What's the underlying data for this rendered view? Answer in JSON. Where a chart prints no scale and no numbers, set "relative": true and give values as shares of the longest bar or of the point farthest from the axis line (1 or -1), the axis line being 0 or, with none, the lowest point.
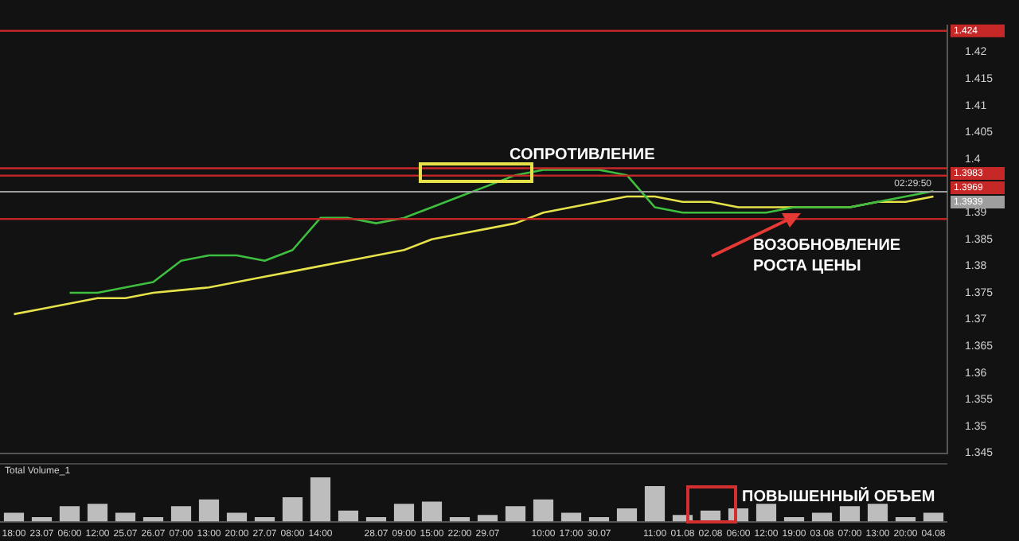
{
  "chart_data": [
    {
      "type": "line",
      "categories": [
        null,
        null,
        null,
        null,
        null,
        null,
        null,
        null,
        null,
        null,
        null,
        null,
        null,
        null,
        null,
        null,
        null,
        null,
        null,
        null,
        null,
        null,
        null,
        null,
        null,
        null,
        null,
        null,
        null,
        null,
        null,
        null,
        null,
        null
      ],
      "series": [
        {
          "color": "#3fbf3f",
          "values": [
            null,
            null,
            1.375,
            1.375,
            1.376,
            1.377,
            1.381,
            1.382,
            1.382,
            1.381,
            1.383,
            1.389,
            1.389,
            1.388,
            1.389,
            1.391,
            1.393,
            1.395,
            1.397,
            1.398,
            1.398,
            1.398,
            1.397,
            1.391,
            1.39,
            1.39,
            1.39,
            1.39,
            1.391,
            1.391,
            1.391,
            1.392,
            1.393,
            1.394
          ]
        },
        {
          "color": "#e6e24a",
          "values": [
            1.371,
            1.372,
            1.373,
            1.374,
            1.374,
            1.375,
            1.3755,
            1.376,
            1.377,
            1.378,
            1.379,
            1.38,
            1.381,
            1.382,
            1.383,
            1.385,
            1.386,
            1.387,
            1.388,
            1.39,
            1.391,
            1.392,
            1.393,
            1.393,
            1.392,
            1.392,
            1.391,
            1.391,
            1.391,
            1.391,
            1.391,
            1.392,
            1.392,
            1.393
          ]
        }
      ],
      "ylim": [
        1.345,
        1.425
      ],
      "yticks": [
        1.345,
        1.35,
        1.355,
        1.36,
        1.365,
        1.37,
        1.375,
        1.38,
        1.385,
        1.39,
        1.4,
        1.405,
        1.41,
        1.415,
        1.42
      ],
      "tick_labels": "y",
      "grid": false,
      "legend": false,
      "ref_lines": [
        {
          "axis": "y",
          "value": 1.424,
          "label": "1.424",
          "color": "#c62828"
        },
        {
          "axis": "y",
          "value": 1.3983,
          "label": "1.3983",
          "color": "#c62828"
        },
        {
          "axis": "y",
          "value": 1.3969,
          "label": "1.3969",
          "color": "#c62828"
        },
        {
          "axis": "y",
          "value": 1.3888,
          "color": "#c62828"
        },
        {
          "axis": "y",
          "value": 1.3939,
          "label": "1.3939",
          "color": "#9e9e9e"
        }
      ],
      "annotations": [
        "СОПРОТИВЛЕНИЕ",
        "ВОЗОБНОВЛЕНИЕ РОСТА ЦЕНЫ",
        {
          "text": "02:29:50",
          "y": 1.3939
        }
      ]
    },
    {
      "type": "bar",
      "categories": [
        "18:00",
        "23.07",
        "06:00",
        "12:00",
        "25.07",
        "26.07",
        "07:00",
        "13:00",
        "20:00",
        "27.07",
        "08:00",
        "14:00",
        null,
        "28.07",
        "09:00",
        "15:00",
        "22:00",
        "29.07",
        null,
        "10:00",
        "17:00",
        "30.07",
        null,
        "11:00",
        "01.08",
        "02.08",
        "06:00",
        "12:00",
        "19:00",
        "03.08",
        "07:00",
        "13:00",
        "20:00",
        "04.08"
      ],
      "values": [
        0.2,
        0.1,
        0.35,
        0.4,
        0.2,
        0.1,
        0.35,
        0.5,
        0.2,
        0.1,
        0.55,
        1.0,
        0.25,
        0.1,
        0.4,
        0.45,
        0.1,
        0.15,
        0.35,
        0.5,
        0.2,
        0.1,
        0.3,
        0.8,
        0.15,
        0.25,
        0.3,
        0.4,
        0.1,
        0.2,
        0.35,
        0.4,
        0.1,
        0.2
      ],
      "color": "#bdbdbd",
      "relative": true,
      "tick_labels": "x",
      "grid": false,
      "legend": false,
      "annotations": [
        "Total Volume_1",
        "ПОВЫШЕННЫЙ ОБЪЕМ"
      ]
    }
  ]
}
